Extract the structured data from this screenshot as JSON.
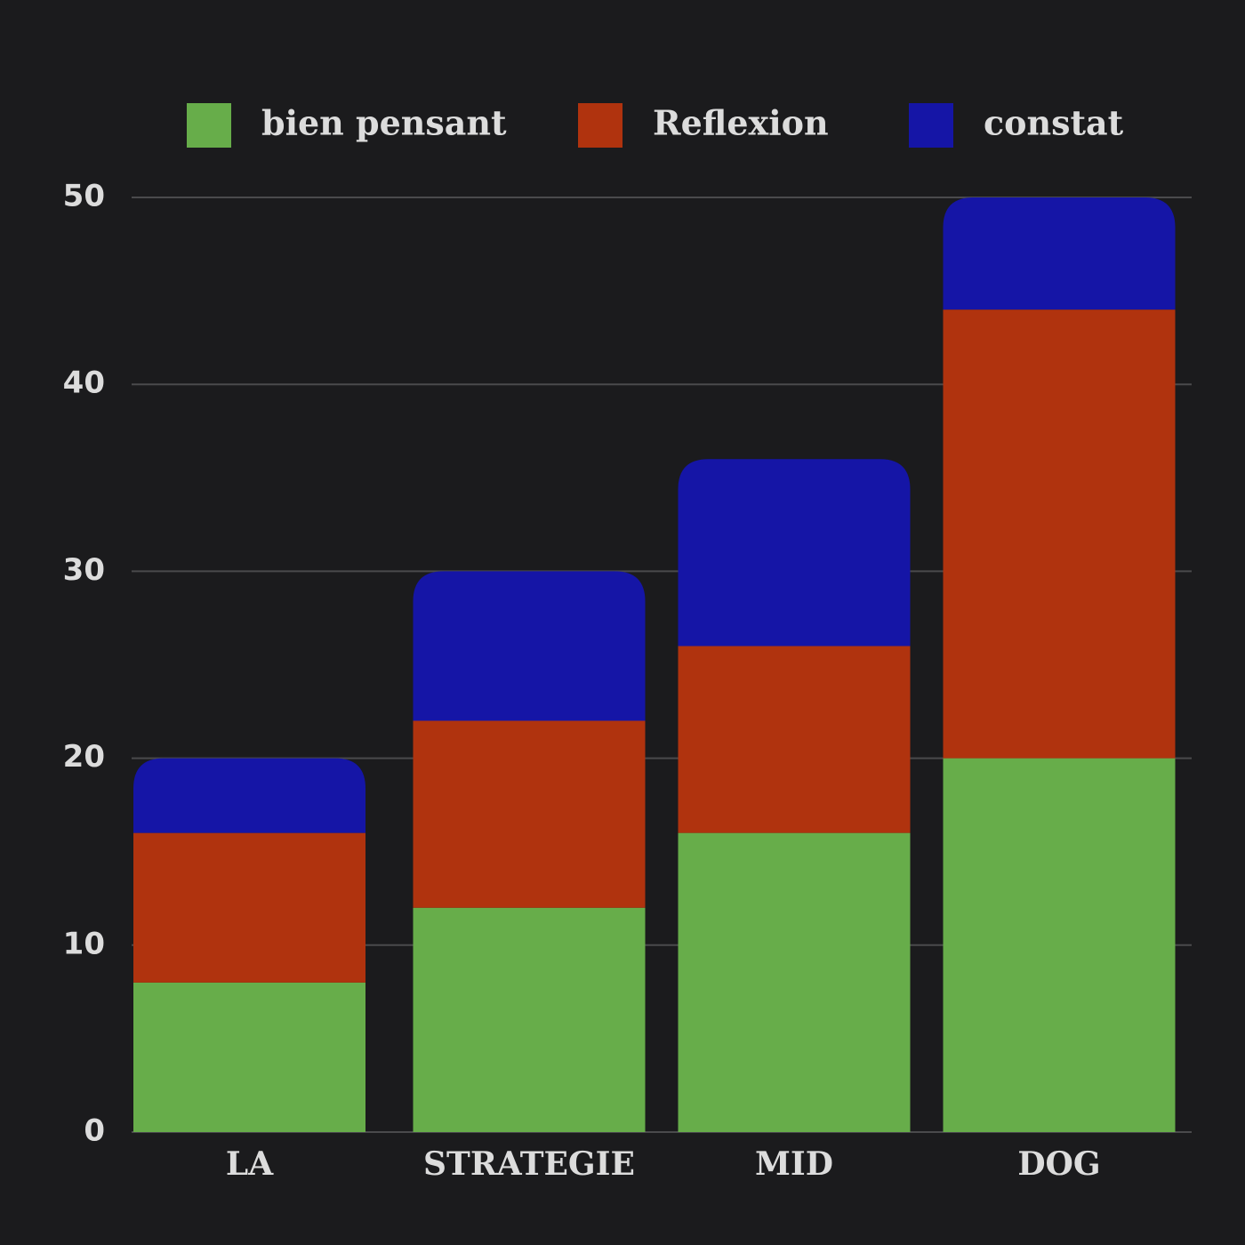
{
  "chart_data": {
    "type": "stacked-bar",
    "categories": [
      "LA",
      "STRATEGIE",
      "MID",
      "DOG"
    ],
    "series": [
      {
        "name": "bien pensant",
        "color": "#67ad4a",
        "values": [
          8,
          12,
          16,
          20
        ]
      },
      {
        "name": "Reflexion",
        "color": "#b0330e",
        "values": [
          8,
          10,
          10,
          24
        ]
      },
      {
        "name": "constat",
        "color": "#1515a6",
        "values": [
          4,
          8,
          10,
          6
        ]
      }
    ],
    "ylim": [
      0,
      50
    ],
    "yticks": [
      0,
      10,
      20,
      30,
      40,
      50
    ],
    "grid": true,
    "legend": "top"
  }
}
